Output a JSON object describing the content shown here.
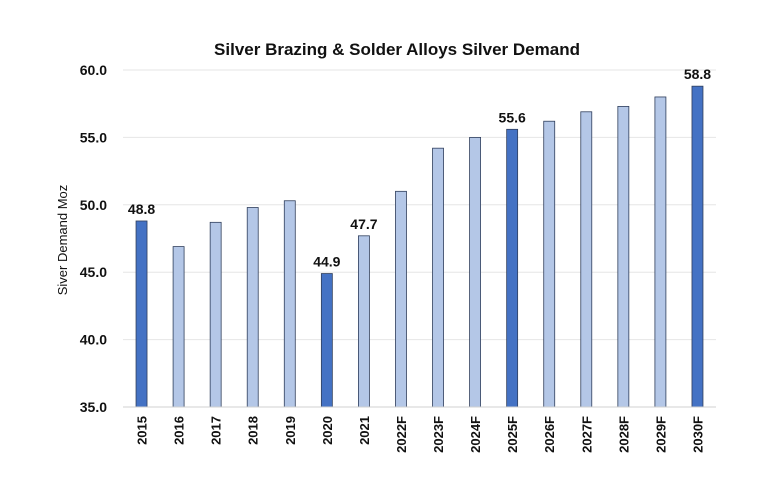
{
  "chart_data": {
    "type": "bar",
    "title": "Silver Brazing & Solder Alloys Silver Demand",
    "xlabel": "",
    "ylabel": "Siver Demand Moz",
    "ylim": [
      35.0,
      60.0
    ],
    "yticks": [
      "35.0",
      "40.0",
      "45.0",
      "50.0",
      "55.0",
      "60.0"
    ],
    "grid": true,
    "legend": "none",
    "categories": [
      "2015",
      "2016",
      "2017",
      "2018",
      "2019",
      "2020",
      "2021",
      "2022F",
      "2023F",
      "2024F",
      "2025F",
      "2026F",
      "2027F",
      "2028F",
      "2029F",
      "2030F"
    ],
    "values": [
      48.8,
      46.9,
      48.7,
      49.8,
      50.3,
      44.9,
      47.7,
      51.0,
      54.2,
      55.0,
      55.6,
      56.2,
      56.9,
      57.3,
      58.0,
      58.8
    ],
    "highlighted": [
      true,
      false,
      false,
      false,
      false,
      true,
      false,
      false,
      false,
      false,
      true,
      false,
      false,
      false,
      false,
      true
    ],
    "data_labels": [
      "48.8",
      "",
      "",
      "",
      "",
      "44.9",
      "47.7",
      "",
      "",
      "",
      "55.6",
      "",
      "",
      "",
      "",
      "58.8"
    ],
    "colors": {
      "highlight": "#4472c4",
      "normal": "#b4c7e7",
      "bar_stroke": "#2f3e5c"
    }
  }
}
